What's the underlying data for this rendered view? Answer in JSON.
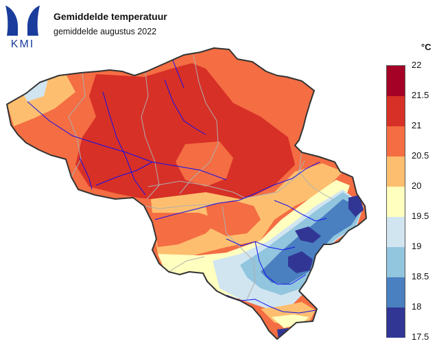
{
  "header": {
    "logo_text": "KMI",
    "title": "Gemiddelde temperatuur",
    "subtitle": "gemiddelde augustus 2022"
  },
  "legend": {
    "unit": "°C",
    "ticks": [
      "22",
      "21.5",
      "21",
      "20.5",
      "20",
      "19.5",
      "19",
      "18.5",
      "18",
      "17.5"
    ],
    "bins": [
      {
        "min": 21.5,
        "max": 22,
        "color": "#a50026"
      },
      {
        "min": 21,
        "max": 21.5,
        "color": "#d73027"
      },
      {
        "min": 20.5,
        "max": 21,
        "color": "#f46d43"
      },
      {
        "min": 20,
        "max": 20.5,
        "color": "#fdbf6f"
      },
      {
        "min": 19.5,
        "max": 20,
        "color": "#ffffbf"
      },
      {
        "min": 19,
        "max": 19.5,
        "color": "#d1e5f0"
      },
      {
        "min": 18.5,
        "max": 19,
        "color": "#92c5de"
      },
      {
        "min": 18,
        "max": 18.5,
        "color": "#4a7fc0"
      },
      {
        "min": 17.5,
        "max": 18,
        "color": "#313695"
      }
    ]
  },
  "colors": {
    "logo": "#1a3c9c",
    "border": "#333333",
    "province_lines": "#b0b0b0",
    "rivers": "#1010ee",
    "background": "#ffffff"
  }
}
